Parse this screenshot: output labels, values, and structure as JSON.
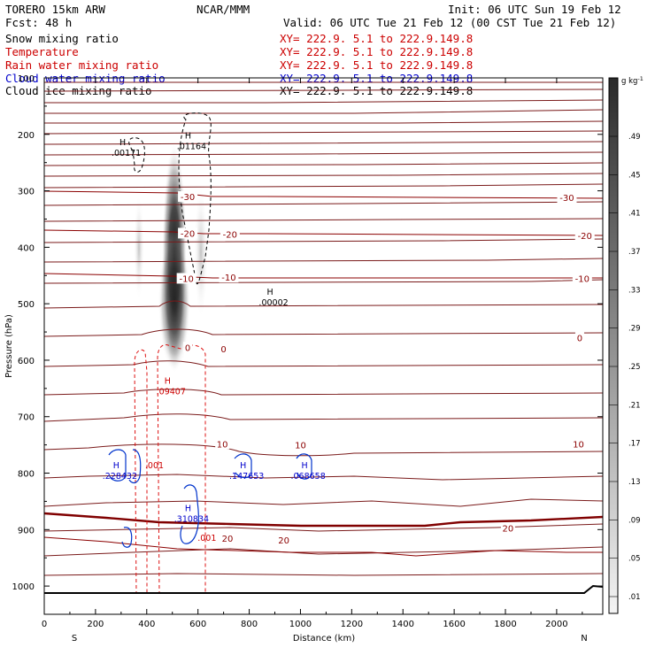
{
  "header": {
    "model": "TORERO  15km ARW",
    "org": "NCAR/MMM",
    "init": "Init: 06 UTC Sun 19 Feb 12",
    "fcst": "Fcst:   48 h",
    "valid": "Valid: 06 UTC Tue 21 Feb 12 (00 CST Tue 21 Feb 12)"
  },
  "fields": [
    {
      "name": "Snow mixing ratio",
      "xy": "XY= 222.9.  5.1 to 222.9.149.8",
      "color": "#000000"
    },
    {
      "name": "Temperature",
      "xy": "XY= 222.9.  5.1 to 222.9.149.8",
      "color": "#cc0000"
    },
    {
      "name": "Rain water mixing ratio",
      "xy": "XY= 222.9.  5.1 to 222.9.149.8",
      "color": "#cc0000"
    },
    {
      "name": "Cloud water mixing ratio",
      "xy": "XY= 222.9.  5.1 to 222.9.149.8",
      "color": "#0000cc"
    },
    {
      "name": "Cloud ice mixing ratio",
      "xy": "XY= 222.9.  5.1 to 222.9.149.8",
      "color": "#000000"
    }
  ],
  "chart_data": {
    "type": "vertical-cross-section",
    "xlabel": "Distance (km)",
    "ylabel": "Pressure (hPa)",
    "xlim": [
      0,
      2180
    ],
    "ylim": [
      1050,
      100
    ],
    "xticks": [
      0,
      200,
      400,
      600,
      800,
      1000,
      1200,
      1400,
      1600,
      1800,
      2000
    ],
    "yticks": [
      100,
      200,
      300,
      400,
      500,
      600,
      700,
      800,
      900,
      1000
    ],
    "end_labels": {
      "left": "S",
      "right": "N"
    },
    "colorbar": {
      "units": "g kg",
      "units_exp": "-1",
      "levels": [
        ".01",
        ".05",
        ".09",
        ".13",
        ".17",
        ".21",
        ".25",
        ".29",
        ".33",
        ".37",
        ".41",
        ".45",
        ".49"
      ]
    },
    "temperature_labels": [
      {
        "text": "-30",
        "x": 560,
        "p": 310
      },
      {
        "text": "-30",
        "x": 2040,
        "p": 312
      },
      {
        "text": "-20",
        "x": 560,
        "p": 375
      },
      {
        "text": "-20",
        "x": 725,
        "p": 377
      },
      {
        "text": "-20",
        "x": 2110,
        "p": 379
      },
      {
        "text": "-10",
        "x": 555,
        "p": 455
      },
      {
        "text": "-10",
        "x": 720,
        "p": 453
      },
      {
        "text": "-10",
        "x": 2100,
        "p": 455
      },
      {
        "text": "0",
        "x": 560,
        "p": 577
      },
      {
        "text": "0",
        "x": 700,
        "p": 580
      },
      {
        "text": "0",
        "x": 2090,
        "p": 560
      },
      {
        "text": "10",
        "x": 695,
        "p": 748
      },
      {
        "text": "10",
        "x": 1000,
        "p": 750
      },
      {
        "text": "10",
        "x": 2085,
        "p": 748
      },
      {
        "text": "20",
        "x": 715,
        "p": 915
      },
      {
        "text": "20",
        "x": 935,
        "p": 918
      },
      {
        "text": "20",
        "x": 1810,
        "p": 897
      }
    ],
    "extrema": [
      {
        "label": "H",
        "value": ".00171",
        "x": 320,
        "p": 232,
        "field": "cloud ice",
        "color": "#000000"
      },
      {
        "label": "H",
        "value": ".01164",
        "x": 575,
        "p": 220,
        "field": "cloud ice",
        "color": "#000000"
      },
      {
        "label": "H",
        "value": ".00002",
        "x": 895,
        "p": 497,
        "field": "cloud ice",
        "color": "#000000"
      },
      {
        "label": "H",
        "value": ".09407",
        "x": 495,
        "p": 654,
        "field": "rain water",
        "color": "#cc0000"
      },
      {
        "label": "",
        "value": ".001",
        "x": 430,
        "p": 785,
        "field": "rain water",
        "color": "#cc0000"
      },
      {
        "label": "",
        "value": ".001",
        "x": 635,
        "p": 914,
        "field": "rain water",
        "color": "#cc0000"
      },
      {
        "label": "H",
        "value": ".228432",
        "x": 295,
        "p": 804,
        "field": "cloud water",
        "color": "#0000cc"
      },
      {
        "label": "H",
        "value": ".147653",
        "x": 790,
        "p": 804,
        "field": "cloud water",
        "color": "#0000cc"
      },
      {
        "label": "H",
        "value": ".068658",
        "x": 1030,
        "p": 804,
        "field": "cloud water",
        "color": "#0000cc"
      },
      {
        "label": "H",
        "value": ".310834",
        "x": 575,
        "p": 880,
        "field": "cloud water",
        "color": "#0000cc"
      }
    ]
  }
}
